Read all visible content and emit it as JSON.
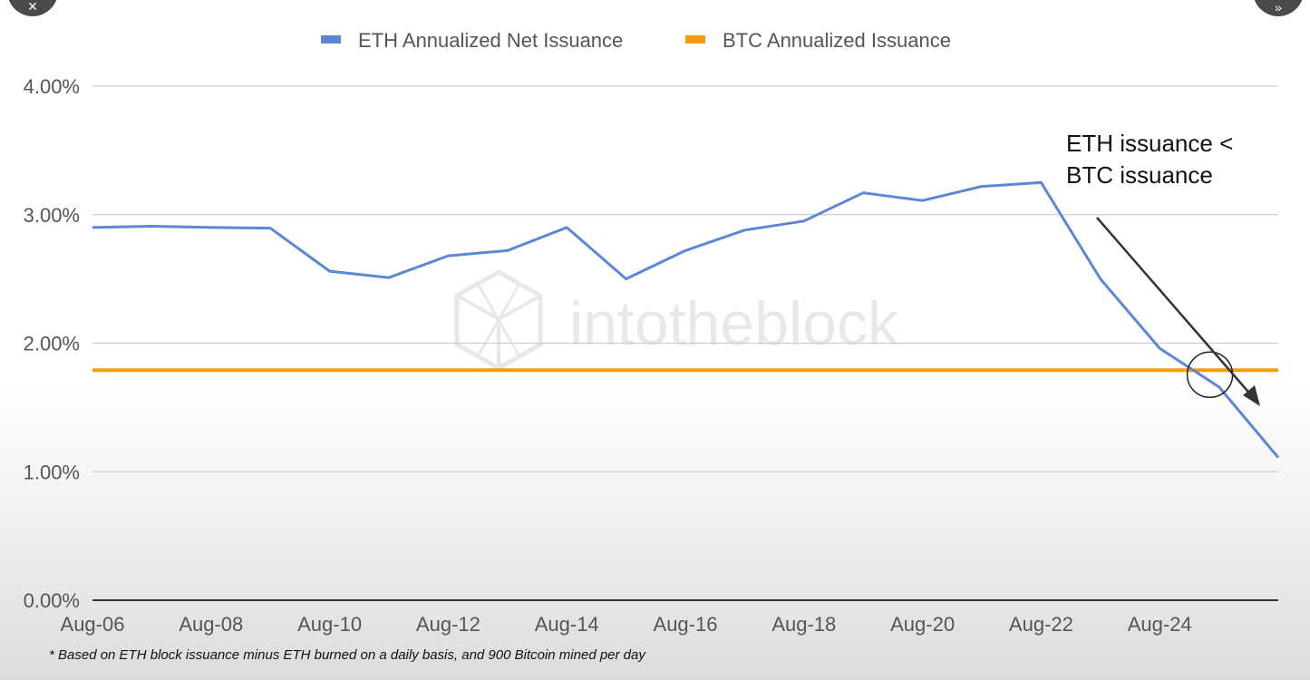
{
  "chart_data": {
    "type": "line",
    "title": "",
    "xlabel": "",
    "ylabel": "",
    "x": [
      "Aug-06",
      "Aug-07",
      "Aug-08",
      "Aug-09",
      "Aug-10",
      "Aug-11",
      "Aug-12",
      "Aug-13",
      "Aug-14",
      "Aug-15",
      "Aug-16",
      "Aug-17",
      "Aug-18",
      "Aug-19",
      "Aug-20",
      "Aug-21",
      "Aug-22",
      "Aug-23",
      "Aug-24",
      "Aug-25",
      "Aug-26"
    ],
    "x_tick_labels": [
      "Aug-06",
      "Aug-08",
      "Aug-10",
      "Aug-12",
      "Aug-14",
      "Aug-16",
      "Aug-18",
      "Aug-20",
      "Aug-22",
      "Aug-24"
    ],
    "y_tick_labels": [
      "0.00%",
      "1.00%",
      "2.00%",
      "3.00%",
      "4.00%"
    ],
    "ylim": [
      0,
      4
    ],
    "y_unit": "%",
    "grid": true,
    "legend_position": "top",
    "series": [
      {
        "name": "ETH Annualized Net Issuance",
        "color": "#5b87d4",
        "values": [
          2.9,
          2.91,
          2.9,
          2.895,
          2.56,
          2.51,
          2.68,
          2.72,
          2.9,
          2.5,
          2.72,
          2.88,
          2.95,
          3.17,
          3.11,
          3.22,
          3.25,
          2.5,
          1.96,
          1.66,
          1.11
        ]
      },
      {
        "name": "BTC Annualized Issuance",
        "color": "#f59b12",
        "values": [
          1.79,
          1.79,
          1.79,
          1.79,
          1.79,
          1.79,
          1.79,
          1.79,
          1.79,
          1.79,
          1.79,
          1.79,
          1.79,
          1.79,
          1.79,
          1.79,
          1.79,
          1.79,
          1.79,
          1.79,
          1.79
        ]
      }
    ],
    "annotation": {
      "lines": [
        "ETH issuance <",
        "BTC issuance"
      ],
      "circle_x": "Aug-25",
      "circle_y": 1.79
    },
    "watermark": "intotheblock",
    "footnote": "* Based on ETH block issuance minus ETH burned on a daily basis, and 900 Bitcoin mined per day"
  }
}
